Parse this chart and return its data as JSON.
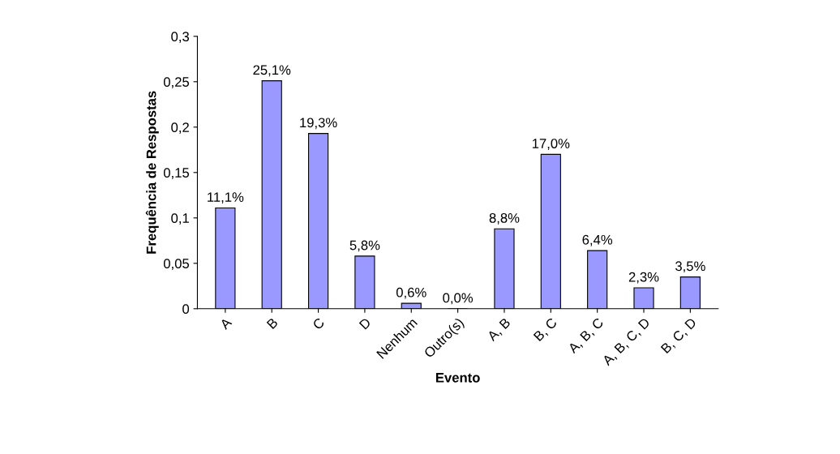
{
  "chart_data": {
    "type": "bar",
    "xlabel": "Evento",
    "ylabel": "Frequência de Respostas",
    "categories": [
      "A",
      "B",
      "C",
      "D",
      "Nenhum",
      "Outro(s)",
      "A, B",
      "B, C",
      "A, B, C",
      "A, B, C, D",
      "B, C, D"
    ],
    "values": [
      0.111,
      0.251,
      0.193,
      0.058,
      0.006,
      0.0,
      0.088,
      0.17,
      0.064,
      0.023,
      0.035
    ],
    "value_labels": [
      "11,1%",
      "25,1%",
      "19,3%",
      "5,8%",
      "0,6%",
      "0,0%",
      "8,8%",
      "17,0%",
      "6,4%",
      "2,3%",
      "3,5%"
    ],
    "color": "#9999ff",
    "ylim": [
      0,
      0.3
    ],
    "yticks": [
      0,
      {
        "value": 0.05,
        "label": "0,05"
      },
      {
        "value": 0.1,
        "label": "0,1"
      },
      {
        "value": 0.15,
        "label": "0,15"
      },
      {
        "value": 0.2,
        "label": "0,2"
      },
      {
        "value": 0.25,
        "label": "0,25"
      },
      {
        "value": 0.3,
        "label": "0,3"
      }
    ],
    "grid": false
  }
}
